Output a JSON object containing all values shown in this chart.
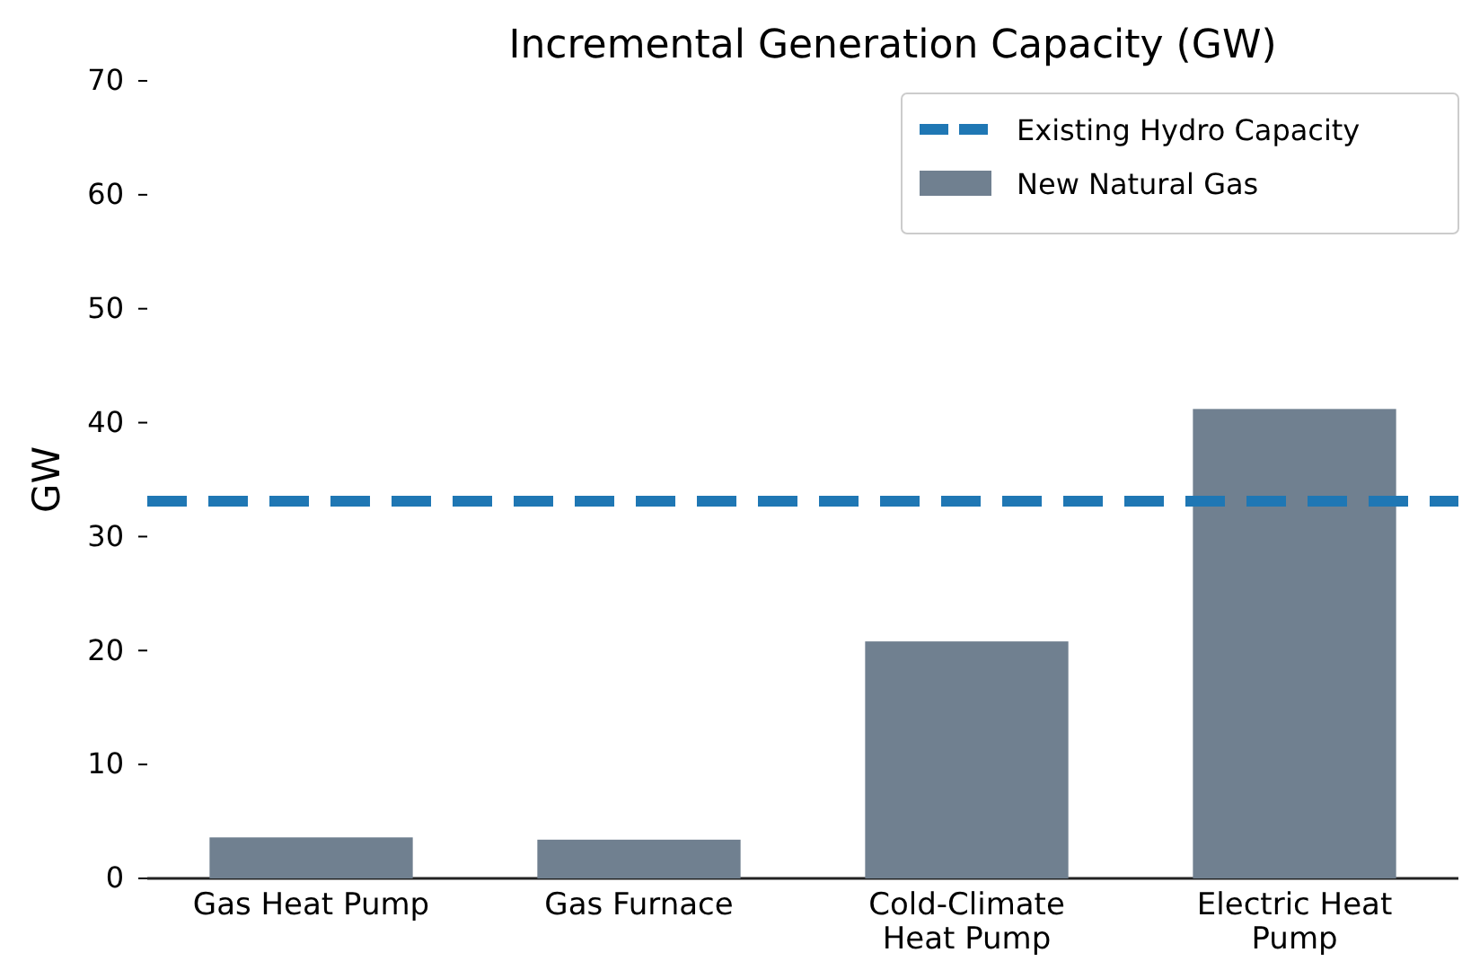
{
  "chart_data": {
    "type": "bar",
    "title": "Incremental Generation Capacity (GW)",
    "ylabel": "GW",
    "categories": [
      "Gas Heat Pump",
      "Gas Furnace",
      "Cold-Climate Heat Pump",
      "Electric Heat Pump"
    ],
    "series": [
      {
        "name": "New Natural Gas",
        "color": "#708090",
        "values": [
          3.6,
          3.4,
          20.8,
          41.2
        ]
      }
    ],
    "ylim": [
      0,
      70
    ],
    "yticks": [
      0,
      10,
      20,
      30,
      40,
      50,
      60,
      70
    ],
    "ref_lines": [
      {
        "axis": "y",
        "value": 33.1,
        "label": "Existing Hydro Capacity",
        "color": "#1f77b4",
        "line_style": "dashed"
      }
    ],
    "legend": "top right",
    "grid": false
  }
}
